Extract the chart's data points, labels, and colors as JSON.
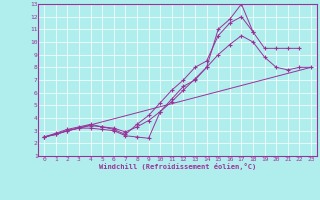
{
  "xlabel": "Windchill (Refroidissement éolien,°C)",
  "bg_color": "#b0eeee",
  "line_color": "#993399",
  "grid_color": "#ffffff",
  "xlim": [
    -0.5,
    23.5
  ],
  "ylim": [
    1,
    13
  ],
  "xticks": [
    0,
    1,
    2,
    3,
    4,
    5,
    6,
    7,
    8,
    9,
    10,
    11,
    12,
    13,
    14,
    15,
    16,
    17,
    18,
    19,
    20,
    21,
    22,
    23
  ],
  "yticks": [
    1,
    2,
    3,
    4,
    5,
    6,
    7,
    8,
    9,
    10,
    11,
    12,
    13
  ],
  "lines": [
    {
      "x": [
        0,
        1,
        2,
        3,
        4,
        5,
        6,
        7,
        8,
        9,
        10,
        11,
        12,
        13,
        14,
        15,
        16,
        17,
        18
      ],
      "y": [
        2.5,
        2.7,
        3.0,
        3.2,
        3.2,
        3.1,
        3.0,
        2.6,
        2.5,
        2.4,
        4.5,
        5.5,
        6.5,
        7.0,
        8.0,
        11.0,
        11.8,
        13.0,
        10.8
      ],
      "marker": true
    },
    {
      "x": [
        0,
        1,
        2,
        3,
        4,
        5,
        6,
        7,
        8,
        9,
        10,
        11,
        12,
        13,
        14,
        15,
        16,
        17,
        18,
        19,
        20,
        21,
        22
      ],
      "y": [
        2.5,
        2.8,
        3.1,
        3.3,
        3.5,
        3.3,
        3.1,
        2.7,
        3.5,
        4.2,
        5.2,
        6.2,
        7.0,
        8.0,
        8.5,
        10.5,
        11.5,
        12.0,
        10.8,
        9.5,
        9.5,
        9.5,
        9.5
      ],
      "marker": true
    },
    {
      "x": [
        0,
        1,
        2,
        3,
        4,
        5,
        6,
        7,
        8,
        9,
        10,
        11,
        12,
        13,
        14,
        15,
        16,
        17,
        18,
        19,
        20,
        21,
        22,
        23
      ],
      "y": [
        2.5,
        2.7,
        3.0,
        3.2,
        3.4,
        3.3,
        3.2,
        2.9,
        3.3,
        3.8,
        4.5,
        5.3,
        6.2,
        7.1,
        8.0,
        9.0,
        9.8,
        10.5,
        10.0,
        8.8,
        8.0,
        7.8,
        8.0,
        8.0
      ],
      "marker": true
    },
    {
      "x": [
        0,
        23
      ],
      "y": [
        2.5,
        8.0
      ],
      "marker": false
    }
  ]
}
